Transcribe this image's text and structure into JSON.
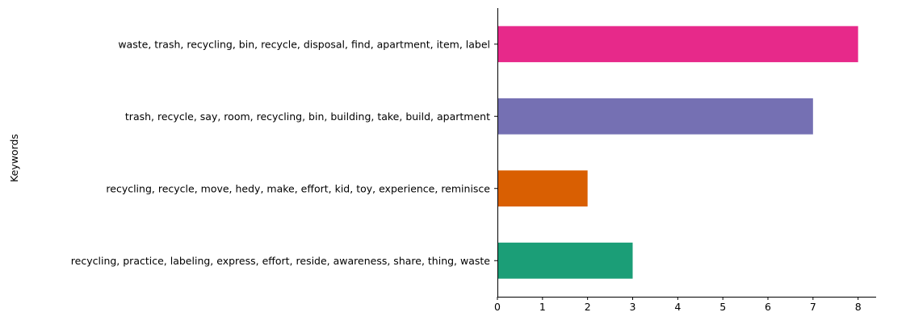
{
  "chart_data": {
    "type": "bar",
    "orientation": "horizontal",
    "title": "",
    "xlabel": "",
    "ylabel": "Keywords",
    "xlim": [
      0,
      8.4
    ],
    "xticks": [
      0,
      1,
      2,
      3,
      4,
      5,
      6,
      7,
      8
    ],
    "grid": false,
    "legend": "none",
    "categories": [
      "waste, trash, recycling, bin, recycle, disposal, find, apartment, item, label",
      "trash, recycle, say, room, recycling, bin, building, take, build, apartment",
      "recycling, recycle, move, hedy, make, effort, kid, toy, experience, reminisce",
      "recycling, practice, labeling, express, effort, reside, awareness, share, thing, waste"
    ],
    "values": [
      8,
      7,
      2,
      3
    ],
    "colors": [
      "#e7298a",
      "#7570b3",
      "#d95f02",
      "#1b9e77"
    ]
  }
}
